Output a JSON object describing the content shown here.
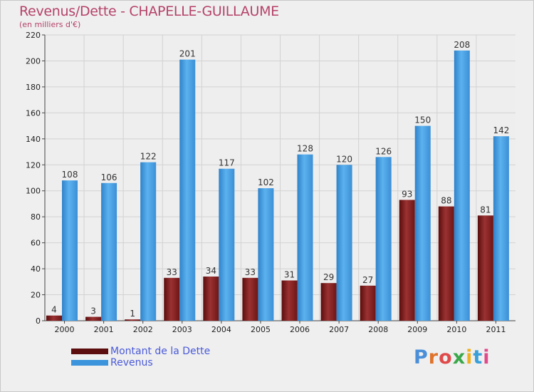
{
  "title": "Revenus/Dette - CHAPELLE-GUILLAUME",
  "subtitle": "(en milliers d'€)",
  "colors": {
    "dette": "#7b1c1c",
    "revenus": "#4aa0e2",
    "title": "#b5426a",
    "legend_text": "#4a5ad8"
  },
  "legend": [
    {
      "label": "Montant de la Dette",
      "color": "#5c0d0d"
    },
    {
      "label": "Revenus",
      "color": "#3c95dc"
    }
  ],
  "logo": {
    "text": "Proxiti"
  },
  "chart_data": {
    "type": "bar",
    "title": "Revenus/Dette - CHAPELLE-GUILLAUME",
    "ylabel": "(en milliers d'€)",
    "categories": [
      "2000",
      "2001",
      "2002",
      "2003",
      "2004",
      "2005",
      "2006",
      "2007",
      "2008",
      "2009",
      "2010",
      "2011"
    ],
    "ylim": [
      0,
      220
    ],
    "yticks": [
      0,
      20,
      40,
      60,
      80,
      100,
      120,
      140,
      160,
      180,
      200,
      220
    ],
    "grid": true,
    "series": [
      {
        "name": "Montant de la Dette",
        "values": [
          4,
          3,
          1,
          33,
          34,
          33,
          31,
          29,
          27,
          93,
          88,
          81
        ]
      },
      {
        "name": "Revenus",
        "values": [
          108,
          106,
          122,
          201,
          117,
          102,
          128,
          120,
          126,
          150,
          208,
          142
        ]
      }
    ]
  }
}
